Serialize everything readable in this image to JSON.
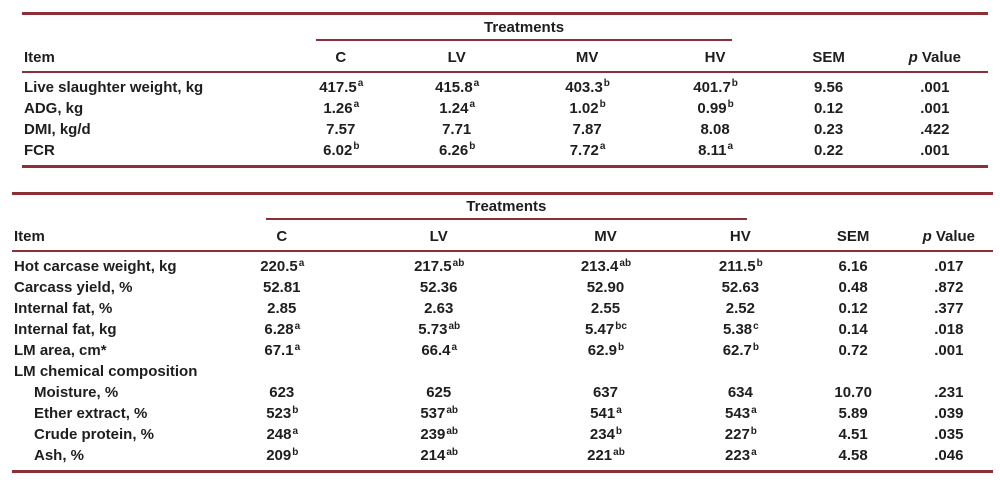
{
  "colors": {
    "rule_maroon": "#8e2f38",
    "text": "#1e1e1e"
  },
  "tables": [
    {
      "name": "growth-performance",
      "treatments_label": "Treatments",
      "column_headers": {
        "item": "Item",
        "c": "C",
        "lv": "LV",
        "mv": "MV",
        "hv": "HV",
        "sem": "SEM",
        "p_italic": "p",
        "p_rest": "Value"
      },
      "rows": [
        {
          "label": "Live slaughter weight, kg",
          "indent": false,
          "cells": [
            {
              "v": "417.5",
              "sup": "a"
            },
            {
              "v": "415.8",
              "sup": "a"
            },
            {
              "v": "403.3",
              "sup": "b"
            },
            {
              "v": "401.7",
              "sup": "b"
            },
            {
              "v": "9.56"
            },
            {
              "v": ".001"
            }
          ]
        },
        {
          "label": "ADG, kg",
          "indent": false,
          "cells": [
            {
              "v": "1.26",
              "sup": "a"
            },
            {
              "v": "1.24",
              "sup": "a"
            },
            {
              "v": "1.02",
              "sup": "b"
            },
            {
              "v": "0.99",
              "sup": "b"
            },
            {
              "v": "0.12"
            },
            {
              "v": ".001"
            }
          ]
        },
        {
          "label": "DMI, kg/d",
          "indent": false,
          "cells": [
            {
              "v": "7.57"
            },
            {
              "v": "7.71"
            },
            {
              "v": "7.87"
            },
            {
              "v": "8.08"
            },
            {
              "v": "0.23"
            },
            {
              "v": ".422"
            }
          ]
        },
        {
          "label": "FCR",
          "indent": false,
          "cells": [
            {
              "v": "6.02",
              "sup": "b"
            },
            {
              "v": "6.26",
              "sup": "b"
            },
            {
              "v": "7.72",
              "sup": "a"
            },
            {
              "v": "8.11",
              "sup": "a"
            },
            {
              "v": "0.22"
            },
            {
              "v": ".001"
            }
          ]
        }
      ]
    },
    {
      "name": "carcass-traits",
      "treatments_label": "Treatments",
      "column_headers": {
        "item": "Item",
        "c": "C",
        "lv": "LV",
        "mv": "MV",
        "hv": "HV",
        "sem": "SEM",
        "p_italic": "p",
        "p_rest": "Value"
      },
      "rows": [
        {
          "label": "Hot carcase weight, kg",
          "indent": false,
          "cells": [
            {
              "v": "220.5",
              "sup": "a"
            },
            {
              "v": "217.5",
              "sup": "ab"
            },
            {
              "v": "213.4",
              "sup": "ab"
            },
            {
              "v": "211.5",
              "sup": "b"
            },
            {
              "v": "6.16"
            },
            {
              "v": ".017"
            }
          ]
        },
        {
          "label": "Carcass yield, %",
          "indent": false,
          "cells": [
            {
              "v": "52.81"
            },
            {
              "v": "52.36"
            },
            {
              "v": "52.90"
            },
            {
              "v": "52.63"
            },
            {
              "v": "0.48"
            },
            {
              "v": ".872"
            }
          ]
        },
        {
          "label": "Internal fat, %",
          "indent": false,
          "cells": [
            {
              "v": "2.85"
            },
            {
              "v": "2.63"
            },
            {
              "v": "2.55"
            },
            {
              "v": "2.52"
            },
            {
              "v": "0.12"
            },
            {
              "v": ".377"
            }
          ]
        },
        {
          "label": "Internal fat, kg",
          "indent": false,
          "cells": [
            {
              "v": "6.28",
              "sup": "a"
            },
            {
              "v": "5.73",
              "sup": "ab"
            },
            {
              "v": "5.47",
              "sup": "bc"
            },
            {
              "v": "5.38",
              "sup": "c"
            },
            {
              "v": "0.14"
            },
            {
              "v": ".018"
            }
          ]
        },
        {
          "label": "LM area, cm*",
          "indent": false,
          "cells": [
            {
              "v": "67.1",
              "sup": "a"
            },
            {
              "v": "66.4",
              "sup": "a"
            },
            {
              "v": "62.9",
              "sup": "b"
            },
            {
              "v": "62.7",
              "sup": "b"
            },
            {
              "v": "0.72"
            },
            {
              "v": ".001"
            }
          ]
        },
        {
          "label": "LM chemical composition",
          "indent": false,
          "cells": []
        },
        {
          "label": "Moisture, %",
          "indent": true,
          "cells": [
            {
              "v": "623"
            },
            {
              "v": "625"
            },
            {
              "v": "637"
            },
            {
              "v": "634"
            },
            {
              "v": "10.70"
            },
            {
              "v": ".231"
            }
          ]
        },
        {
          "label": "Ether extract, %",
          "indent": true,
          "cells": [
            {
              "v": "523",
              "sup": "b"
            },
            {
              "v": "537",
              "sup": "ab"
            },
            {
              "v": "541",
              "sup": "a"
            },
            {
              "v": "543",
              "sup": "a"
            },
            {
              "v": "5.89"
            },
            {
              "v": ".039"
            }
          ]
        },
        {
          "label": "Crude protein, %",
          "indent": true,
          "cells": [
            {
              "v": "248",
              "sup": "a"
            },
            {
              "v": "239",
              "sup": "ab"
            },
            {
              "v": "234",
              "sup": "b"
            },
            {
              "v": "227",
              "sup": "b"
            },
            {
              "v": "4.51"
            },
            {
              "v": ".035"
            }
          ]
        },
        {
          "label": "Ash, %",
          "indent": true,
          "cells": [
            {
              "v": "209",
              "sup": "b"
            },
            {
              "v": "214",
              "sup": "ab"
            },
            {
              "v": "221",
              "sup": "ab"
            },
            {
              "v": "223",
              "sup": "a"
            },
            {
              "v": "4.58"
            },
            {
              "v": ".046"
            }
          ]
        }
      ]
    }
  ]
}
